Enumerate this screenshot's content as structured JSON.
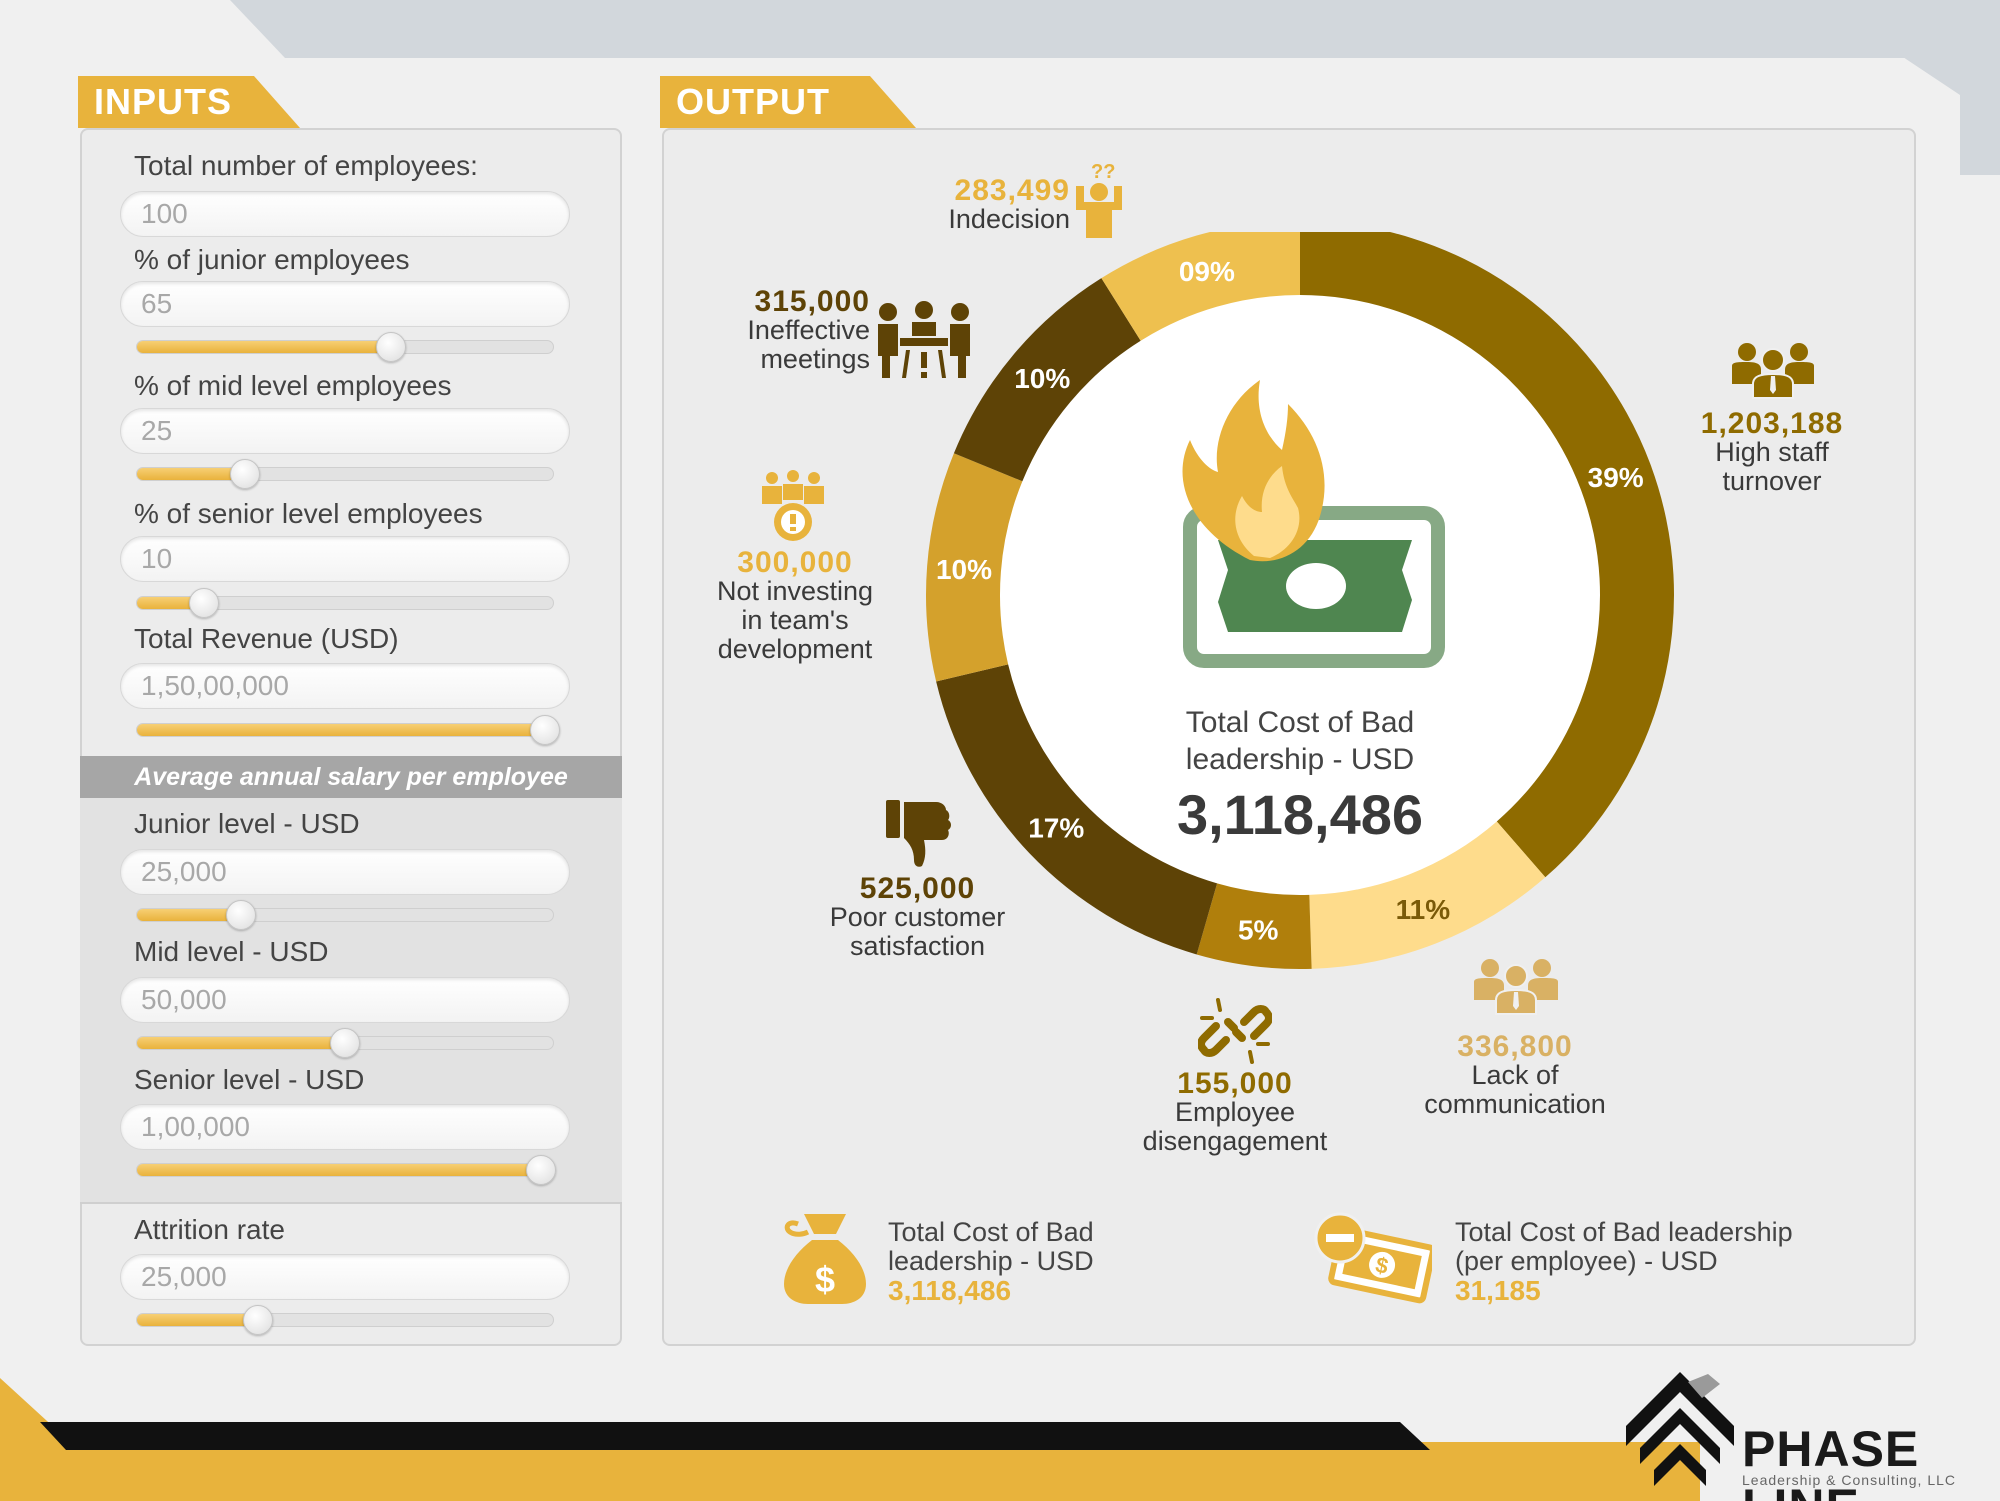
{
  "colors": {
    "gold": "#e8b33c",
    "dark_brown": "#5e4306",
    "olive_brown": "#8f6b00",
    "light_gold": "#fedc8c",
    "mustard": "#d4a12c",
    "bill_green": "#4f8650",
    "gray_panel": "#a6a6a6"
  },
  "inputs": {
    "header": "INPUTS",
    "fields": [
      {
        "label": "Total number of employees:",
        "value": "100"
      },
      {
        "label": "% of junior employees",
        "value": "65",
        "slider_fraction": 0.61
      },
      {
        "label": "% of mid level employees",
        "value": "25",
        "slider_fraction": 0.26
      },
      {
        "label": "% of senior level employees",
        "value": "10",
        "slider_fraction": 0.16
      },
      {
        "label": "Total Revenue (USD)",
        "value": "1,50,00,000",
        "slider_fraction": 0.98
      }
    ],
    "salary_header": "Average annual salary per employee",
    "salary_fields": [
      {
        "label": "Junior level - USD",
        "value": "25,000",
        "slider_fraction": 0.25
      },
      {
        "label": "Mid level - USD",
        "value": "50,000",
        "slider_fraction": 0.5
      },
      {
        "label": "Senior level - USD",
        "value": "1,00,000",
        "slider_fraction": 0.97
      }
    ],
    "attrition": {
      "label": "Attrition rate",
      "value": "25,000",
      "slider_fraction": 0.29
    }
  },
  "output": {
    "header": "OUTPUT",
    "center_label": "Total Cost of Bad leadership - USD",
    "center_value": "3,118,486",
    "segments": [
      {
        "name": "High staff turnover",
        "percent_label": "39%",
        "value": "1,203,188",
        "share": 0.39,
        "icon": "team-icon"
      },
      {
        "name": "Lack of communication",
        "percent_label": "11%",
        "value": "336,800",
        "share": 0.11,
        "icon": "group-icon"
      },
      {
        "name": "Employee disengagement",
        "percent_label": "5%",
        "value": "155,000",
        "share": 0.05,
        "icon": "broken-link-icon"
      },
      {
        "name": "Poor customer satisfaction",
        "percent_label": "17%",
        "value": "525,000",
        "share": 0.17,
        "icon": "thumbs-down-icon"
      },
      {
        "name": "Not investing in team's development",
        "percent_label": "10%",
        "value": "300,000",
        "share": 0.1,
        "icon": "team-gear-icon"
      },
      {
        "name": "Ineffective meetings",
        "percent_label": "10%",
        "value": "315,000",
        "share": 0.1,
        "icon": "meeting-icon"
      },
      {
        "name": "Indecision",
        "percent_label": "09%",
        "value": "283,499",
        "share": 0.09,
        "icon": "question-person-icon"
      }
    ],
    "labels": {
      "turnover": {
        "value": "1,203,188",
        "line1": "High staff",
        "line2": "turnover"
      },
      "communication": {
        "value": "336,800",
        "line1": "Lack of",
        "line2": "communication"
      },
      "disengagement": {
        "value": "155,000",
        "line1": "Employee",
        "line2": "disengagement"
      },
      "satisfaction": {
        "value": "525,000",
        "line1": "Poor customer",
        "line2": "satisfaction"
      },
      "development": {
        "value": "300,000",
        "line1": "Not investing",
        "line2": "in team's",
        "line3": "development"
      },
      "meetings": {
        "value": "315,000",
        "line1": "Ineffective",
        "line2": "meetings"
      },
      "indecision": {
        "value": "283,499",
        "line1": "Indecision"
      }
    },
    "summary": [
      {
        "line1": "Total Cost of Bad",
        "line2": "leadership - USD",
        "value": "3,118,486",
        "icon": "money-bag-icon"
      },
      {
        "line1": "Total Cost of Bad leadership",
        "line2": "(per employee) - USD",
        "value": "31,185",
        "icon": "cash-minus-icon"
      }
    ],
    "center_icon": "burning-money-icon"
  },
  "brand": {
    "name": "PHASE LINE",
    "tagline": "Leadership & Consulting, LLC"
  }
}
